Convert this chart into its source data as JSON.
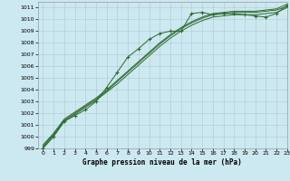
{
  "xlabel": "Graphe pression niveau de la mer (hPa)",
  "background_color": "#cce8f0",
  "grid_color": "#b0c8d0",
  "line_color": "#2d6a2d",
  "xlim": [
    -0.5,
    23
  ],
  "ylim": [
    999,
    1011.5
  ],
  "xticks": [
    0,
    1,
    2,
    3,
    4,
    5,
    6,
    7,
    8,
    9,
    10,
    11,
    12,
    13,
    14,
    15,
    16,
    17,
    18,
    19,
    20,
    21,
    22,
    23
  ],
  "yticks": [
    999,
    1000,
    1001,
    1002,
    1003,
    1004,
    1005,
    1006,
    1007,
    1008,
    1009,
    1010,
    1011
  ],
  "series1_x": [
    0,
    1,
    2,
    3,
    4,
    5,
    6,
    7,
    8,
    9,
    10,
    11,
    12,
    13,
    14,
    15,
    16,
    17,
    18,
    19,
    20,
    21,
    22,
    23
  ],
  "series1_y": [
    999.0,
    1000.0,
    1001.3,
    1001.8,
    1002.3,
    1003.0,
    1004.2,
    1005.5,
    1006.8,
    1007.5,
    1008.3,
    1008.8,
    1009.0,
    1009.0,
    1010.5,
    1010.6,
    1010.4,
    1010.5,
    1010.5,
    1010.4,
    1010.3,
    1010.2,
    1010.5,
    1011.2
  ],
  "series2_x": [
    0,
    1,
    2,
    3,
    4,
    5,
    6,
    7,
    8,
    9,
    10,
    11,
    12,
    13,
    14,
    15,
    16,
    17,
    18,
    19,
    20,
    21,
    22,
    23
  ],
  "series2_y": [
    999.1,
    1000.1,
    1001.3,
    1001.9,
    1002.5,
    1003.1,
    1003.8,
    1004.5,
    1005.3,
    1006.1,
    1006.9,
    1007.7,
    1008.4,
    1009.0,
    1009.5,
    1009.9,
    1010.2,
    1010.3,
    1010.4,
    1010.4,
    1010.4,
    1010.5,
    1010.6,
    1011.0
  ],
  "series3_x": [
    0,
    1,
    2,
    3,
    4,
    5,
    6,
    7,
    8,
    9,
    10,
    11,
    12,
    13,
    14,
    15,
    16,
    17,
    18,
    19,
    20,
    21,
    22,
    23
  ],
  "series3_y": [
    999.2,
    1000.2,
    1001.4,
    1002.0,
    1002.6,
    1003.2,
    1003.9,
    1004.7,
    1005.5,
    1006.3,
    1007.1,
    1007.9,
    1008.6,
    1009.2,
    1009.7,
    1010.1,
    1010.4,
    1010.5,
    1010.6,
    1010.6,
    1010.6,
    1010.7,
    1010.8,
    1011.1
  ],
  "series4_x": [
    0,
    1,
    2,
    3,
    4,
    5,
    6,
    7,
    8,
    9,
    10,
    11,
    12,
    13,
    14,
    15,
    16,
    17,
    18,
    19,
    20,
    21,
    22,
    23
  ],
  "series4_y": [
    999.3,
    1000.3,
    1001.5,
    1002.1,
    1002.7,
    1003.3,
    1004.0,
    1004.8,
    1005.6,
    1006.4,
    1007.2,
    1008.0,
    1008.7,
    1009.3,
    1009.8,
    1010.2,
    1010.5,
    1010.6,
    1010.7,
    1010.7,
    1010.7,
    1010.8,
    1010.9,
    1011.3
  ]
}
